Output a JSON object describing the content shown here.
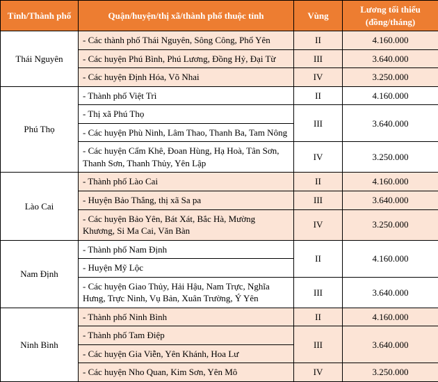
{
  "header": {
    "bg": "#ed7d31",
    "fg": "#ffffff",
    "cols": [
      "Tỉnh/Thành phố",
      "Quận/huyện/thị xã/thành phố thuộc tỉnh",
      "Vùng",
      "Lương tối thiểu (đồng/tháng)"
    ],
    "fontsize": 13
  },
  "stripe": {
    "even": "#fce4d6",
    "odd": "#ffffff"
  },
  "wages": {
    "II": "4.160.000",
    "III": "3.640.000",
    "IV": "3.250.000"
  },
  "provinces": [
    {
      "name": "Thái Nguyên",
      "band": "even",
      "rows": [
        {
          "desc": "- Các thành phố Thái Nguyên, Sông Công, Phổ Yên",
          "region": "II",
          "wage": "4.160.000"
        },
        {
          "desc": "- Các huyện Phú Bình, Phú Lương, Đồng Hỷ, Đại Từ",
          "region": "III",
          "wage": "3.640.000"
        },
        {
          "desc": "- Các huyện Định Hóa, Võ Nhai",
          "region": "IV",
          "wage": "3.250.000"
        }
      ]
    },
    {
      "name": "Phú Thọ",
      "band": "odd",
      "rows": [
        {
          "desc": "- Thành phố Việt Trì",
          "region": "II",
          "wage": "4.160.000"
        },
        {
          "desc": "- Thị xã Phú Thọ",
          "mergeDown": true
        },
        {
          "desc": "- Các huyện Phù Ninh, Lâm Thao, Thanh Ba, Tam Nông",
          "region": "III",
          "wage": "3.640.000",
          "rowSpanFromAbove": true
        },
        {
          "desc": "- Các huyện Cẩm Khê, Đoan Hùng, Hạ Hoà, Tân Sơn, Thanh Sơn, Thanh Thủy, Yên Lập",
          "region": "IV",
          "wage": "3.250.000"
        }
      ]
    },
    {
      "name": "Lào Cai",
      "band": "even",
      "rows": [
        {
          "desc": "- Thành phố Lào Cai",
          "region": "II",
          "wage": "4.160.000"
        },
        {
          "desc": "- Huyện Bảo Thắng, thị xã Sa pa",
          "region": "III",
          "wage": "3.640.000"
        },
        {
          "desc": "- Các huyện Bảo Yên, Bát Xát, Bắc Hà, Mường Khương, Si Ma Cai, Văn Bàn",
          "region": "IV",
          "wage": "3.250.000"
        }
      ]
    },
    {
      "name": "Nam Định",
      "band": "odd",
      "rows": [
        {
          "desc": "- Thành phố Nam Định",
          "mergeDown": true
        },
        {
          "desc": "- Huyện Mỹ Lộc",
          "region": "II",
          "wage": "4.160.000",
          "rowSpanFromAbove": true
        },
        {
          "desc": "- Các huyện Giao Thủy, Hải Hậu, Nam Trực, Nghĩa Hưng, Trực Ninh, Vụ Bản, Xuân Trường, Ý Yên",
          "region": "III",
          "wage": "3.640.000"
        }
      ]
    },
    {
      "name": "Ninh Bình",
      "band": "even",
      "rows": [
        {
          "desc": "- Thành phố Ninh Bình",
          "region": "II",
          "wage": "4.160.000"
        },
        {
          "desc": "- Thành phố Tam Điệp",
          "mergeDown": true
        },
        {
          "desc": "- Các huyện Gia Viễn, Yên Khánh, Hoa Lư",
          "region": "III",
          "wage": "3.640.000",
          "rowSpanFromAbove": true
        },
        {
          "desc": "- Các huyện Nho Quan, Kim Sơn, Yên Mô",
          "region": "IV",
          "wage": "3.250.000"
        }
      ]
    }
  ]
}
